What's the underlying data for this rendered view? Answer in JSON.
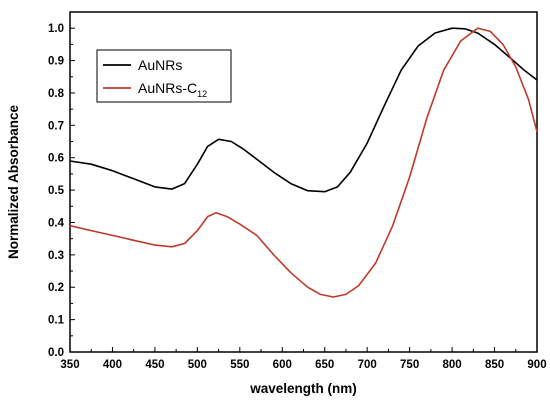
{
  "chart_data": {
    "type": "line",
    "title": "",
    "xlabel": "wavelength (nm)",
    "ylabel": "Normalized Absorbance",
    "xlim": [
      350,
      900
    ],
    "ylim": [
      0.0,
      1.05
    ],
    "x_ticks": [
      350,
      400,
      450,
      500,
      550,
      600,
      650,
      700,
      750,
      800,
      850,
      900
    ],
    "y_ticks": [
      "0.0",
      "0.1",
      "0.2",
      "0.3",
      "0.4",
      "0.5",
      "0.6",
      "0.7",
      "0.8",
      "0.9",
      "1.0"
    ],
    "grid": false,
    "legend_position": "top-left",
    "series": [
      {
        "name": "AuNRs",
        "color": "#000000",
        "points": [
          [
            350,
            0.59
          ],
          [
            375,
            0.58
          ],
          [
            400,
            0.56
          ],
          [
            425,
            0.535
          ],
          [
            450,
            0.51
          ],
          [
            470,
            0.503
          ],
          [
            485,
            0.52
          ],
          [
            500,
            0.58
          ],
          [
            512,
            0.635
          ],
          [
            525,
            0.657
          ],
          [
            540,
            0.65
          ],
          [
            555,
            0.625
          ],
          [
            570,
            0.595
          ],
          [
            590,
            0.555
          ],
          [
            610,
            0.52
          ],
          [
            630,
            0.498
          ],
          [
            650,
            0.495
          ],
          [
            665,
            0.51
          ],
          [
            680,
            0.555
          ],
          [
            700,
            0.645
          ],
          [
            720,
            0.76
          ],
          [
            740,
            0.87
          ],
          [
            760,
            0.945
          ],
          [
            780,
            0.985
          ],
          [
            800,
            1.0
          ],
          [
            815,
            0.998
          ],
          [
            830,
            0.985
          ],
          [
            850,
            0.95
          ],
          [
            870,
            0.905
          ],
          [
            885,
            0.87
          ],
          [
            900,
            0.84
          ]
        ]
      },
      {
        "name": "AuNRs-C",
        "name_subscript": "12",
        "color": "#c0392b",
        "points": [
          [
            350,
            0.39
          ],
          [
            375,
            0.375
          ],
          [
            400,
            0.36
          ],
          [
            425,
            0.345
          ],
          [
            450,
            0.33
          ],
          [
            470,
            0.325
          ],
          [
            485,
            0.335
          ],
          [
            500,
            0.375
          ],
          [
            512,
            0.418
          ],
          [
            522,
            0.43
          ],
          [
            535,
            0.418
          ],
          [
            550,
            0.395
          ],
          [
            570,
            0.36
          ],
          [
            590,
            0.3
          ],
          [
            610,
            0.245
          ],
          [
            630,
            0.2
          ],
          [
            645,
            0.178
          ],
          [
            660,
            0.17
          ],
          [
            675,
            0.178
          ],
          [
            690,
            0.205
          ],
          [
            710,
            0.275
          ],
          [
            730,
            0.39
          ],
          [
            750,
            0.54
          ],
          [
            770,
            0.72
          ],
          [
            790,
            0.87
          ],
          [
            810,
            0.96
          ],
          [
            830,
            1.0
          ],
          [
            845,
            0.99
          ],
          [
            860,
            0.95
          ],
          [
            875,
            0.88
          ],
          [
            890,
            0.78
          ],
          [
            900,
            0.68
          ]
        ]
      }
    ]
  }
}
